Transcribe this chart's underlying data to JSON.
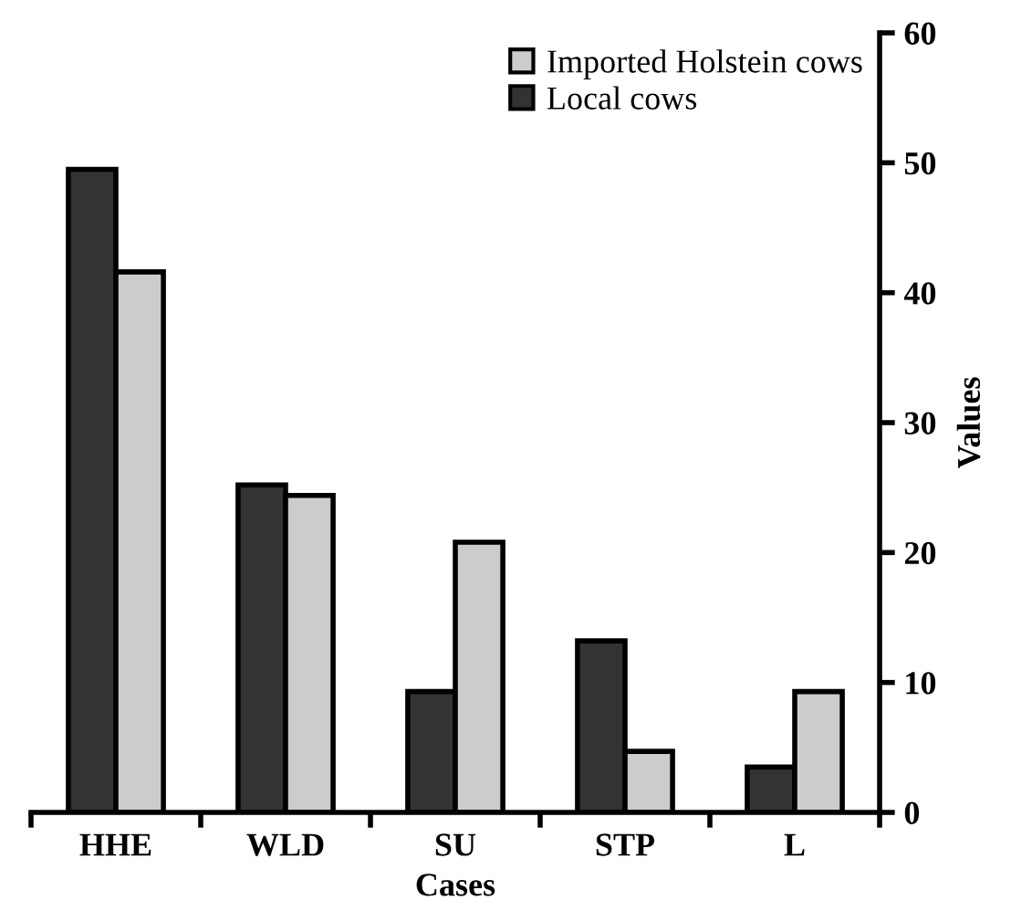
{
  "chart_data": {
    "type": "bar",
    "xlabel": "Cases",
    "ylabel": "Values",
    "categories": [
      "HHE",
      "WLD",
      "SU",
      "STP",
      "L"
    ],
    "series": [
      {
        "name": "Local cows",
        "color": "#333333",
        "values": [
          49.5,
          25.2,
          9.3,
          13.2,
          3.5
        ]
      },
      {
        "name": "Imported Holstein cows",
        "color": "#cccccc",
        "values": [
          41.6,
          24.4,
          20.8,
          4.7,
          9.3
        ]
      }
    ],
    "ylim": [
      0,
      60
    ],
    "yticks": [
      0,
      10,
      20,
      30,
      40,
      50,
      60
    ],
    "grid": false,
    "legend": "top right"
  }
}
